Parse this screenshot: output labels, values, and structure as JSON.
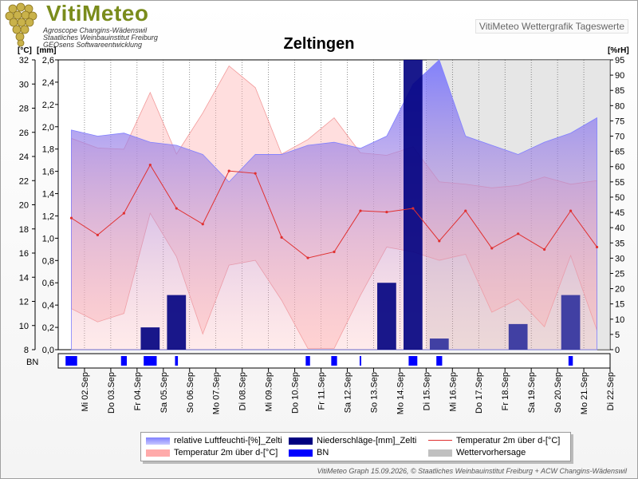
{
  "header": {
    "logo_title": "VitiMeteo",
    "logo_lines": [
      "Agroscope Changins-Wädenswil",
      "Staatliches Weinbauinstitut Freiburg",
      "GEOsens Softwareentwicklung"
    ],
    "badge": "VitiMeteo Wettergrafik Tageswerte"
  },
  "units": {
    "left_temp": "[°C]",
    "left_mm": "[mm]",
    "right": "[%rH]"
  },
  "bn_label": "BN",
  "footer": "VitiMeteo Graph 15.09.2026, © Staatliches Weinbauinstitut Freiburg + ACW Changins-Wädenswil",
  "legend": [
    {
      "label": "relative Luftfeuchti-[%]_Zelti",
      "color": "#8080ff",
      "kind": "area"
    },
    {
      "label": "Niederschläge-[mm]_Zelti",
      "color": "#000080",
      "kind": "bar"
    },
    {
      "label": "Temperatur 2m über d-[°C]",
      "color": "#e03030",
      "kind": "line"
    },
    {
      "label": "Temperatur 2m über d-[°C]",
      "color": "#ffaaaa",
      "kind": "area"
    },
    {
      "label": "BN",
      "color": "#0000ff",
      "kind": "bar"
    },
    {
      "label": "Wettervorhersage",
      "color": "#c0c0c0",
      "kind": "area"
    }
  ],
  "chart_data": {
    "type": "line",
    "title": "Zeltingen",
    "categories": [
      "Mi 02.Sep",
      "Do 03.Sep",
      "Fr 04.Sep",
      "Sa 05.Sep",
      "So 06.Sep",
      "Mo 07.Sep",
      "Di 08.Sep",
      "Mi 09.Sep",
      "Do 10.Sep",
      "Fr 11.Sep",
      "Sa 12.Sep",
      "So 13.Sep",
      "Mo 14.Sep",
      "Di 15.Sep",
      "Mi 16.Sep",
      "Do 17.Sep",
      "Fr 18.Sep",
      "Sa 19.Sep",
      "So 20.Sep",
      "Mo 21.Sep",
      "Di 22.Sep"
    ],
    "forecast_start_index": 14,
    "temperature_axis": {
      "label": "[°C]",
      "min": 8,
      "max": 32,
      "ticks": [
        8,
        10,
        12,
        14,
        16,
        18,
        20,
        22,
        24,
        26,
        28,
        30,
        32
      ]
    },
    "precip_axis": {
      "label": "[mm]",
      "min": 0,
      "max": 2.6,
      "ticks": [
        "0,0",
        "0,2",
        "0,4",
        "0,6",
        "0,8",
        "1,0",
        "1,2",
        "1,4",
        "1,6",
        "1,8",
        "2,0",
        "2,2",
        "2,4",
        "2,6"
      ]
    },
    "humidity_axis": {
      "label": "[%rH]",
      "min": 0,
      "max": 95,
      "ticks": [
        0,
        5,
        10,
        15,
        20,
        25,
        30,
        35,
        40,
        45,
        50,
        55,
        60,
        65,
        70,
        75,
        80,
        85,
        90,
        95
      ]
    },
    "series": [
      {
        "name": "Temperatur 2m über d-[°C]",
        "kind": "line",
        "color": "#e03030",
        "values": [
          18.9,
          17.5,
          19.3,
          23.3,
          19.7,
          18.4,
          22.8,
          22.6,
          17.3,
          15.6,
          16.1,
          19.5,
          19.4,
          19.7,
          17.0,
          19.5,
          16.4,
          17.6,
          16.3,
          19.5,
          16.5
        ]
      },
      {
        "name": "Temperatur 2m über d-[°C] max",
        "kind": "band-upper",
        "values": [
          25.5,
          24.7,
          24.6,
          29.3,
          24.2,
          27.6,
          31.5,
          29.7,
          24.2,
          25.4,
          27.2,
          24.3,
          24.1,
          24.8,
          21.9,
          21.7,
          21.4,
          21.6,
          22.3,
          21.7,
          22.0
        ]
      },
      {
        "name": "Temperatur 2m über d-[°C] min",
        "kind": "band-lower",
        "values": [
          11.4,
          10.3,
          11.0,
          19.3,
          15.7,
          9.3,
          15.0,
          15.4,
          12.1,
          8.1,
          8.1,
          12.5,
          16.5,
          16.1,
          15.4,
          15.9,
          11.1,
          12.2,
          9.9,
          15.8,
          9.6
        ]
      },
      {
        "name": "relative Luftfeuchti-[%]_Zelti",
        "kind": "area",
        "color": "#8080ff",
        "values": [
          72,
          70,
          71,
          68,
          67,
          64,
          55,
          64,
          64,
          67,
          68,
          66,
          70,
          87,
          95,
          70,
          67,
          64,
          68,
          71,
          76
        ]
      },
      {
        "name": "Niederschläge-[mm]_Zelti",
        "kind": "bar",
        "color": "#000080",
        "values": [
          0,
          0,
          0,
          0.2,
          0.49,
          0,
          0,
          0,
          0,
          0,
          0,
          0,
          0.6,
          2.62,
          0.1,
          0,
          0,
          0.23,
          0,
          0.49,
          0
        ]
      },
      {
        "name": "BN",
        "kind": "bar",
        "color": "#0000ff",
        "values": [
          0.8,
          0,
          0.4,
          0.9,
          0.2,
          0,
          0,
          0,
          0,
          0.3,
          0.4,
          0.1,
          0,
          0.6,
          0.4,
          0,
          0,
          0,
          0,
          0.3,
          0
        ]
      }
    ]
  }
}
